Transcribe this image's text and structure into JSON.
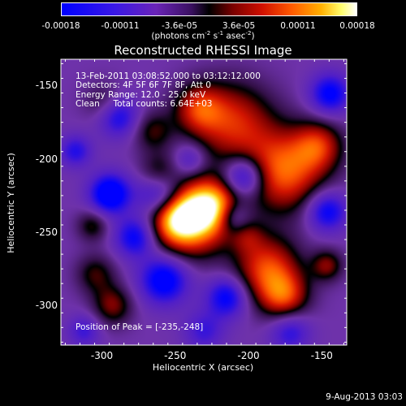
{
  "colorbar": {
    "ticks": [
      "-0.00018",
      "-0.00011",
      "-3.6e-05",
      "3.6e-05",
      "0.00011",
      "0.00018"
    ],
    "units_text": "(photons cm",
    "units_sup1": "-2",
    "units_mid": " s",
    "units_sup2": "-1",
    "units_end": " asec",
    "units_sup3": "-2",
    "units_close": ")"
  },
  "title": "Reconstructed RHESSI Image",
  "info_lines": [
    "13-Feb-2011 03:08:52.000 to 03:12:12.000",
    "Detectors: 4F 5F 6F 7F 8F, Att 0",
    "Energy Range: 12.0 - 25.0 keV",
    "Clean     Total counts: 6.64E+03"
  ],
  "peak_text": "Position of Peak = [-235,-248]",
  "axes": {
    "xlabel": "Heliocentric X (arcsec)",
    "ylabel": "Heliocentric Y (arcsec)",
    "xticks": [
      -300,
      -250,
      -200,
      -150
    ],
    "yticks": [
      -150,
      -200,
      -250,
      -300
    ],
    "xlim": [
      -328,
      -133
    ],
    "ylim": [
      -327,
      -132
    ]
  },
  "footer": "9-Aug-2013 03:03",
  "colors": {
    "background": "#000000",
    "text": "#ffffff"
  }
}
